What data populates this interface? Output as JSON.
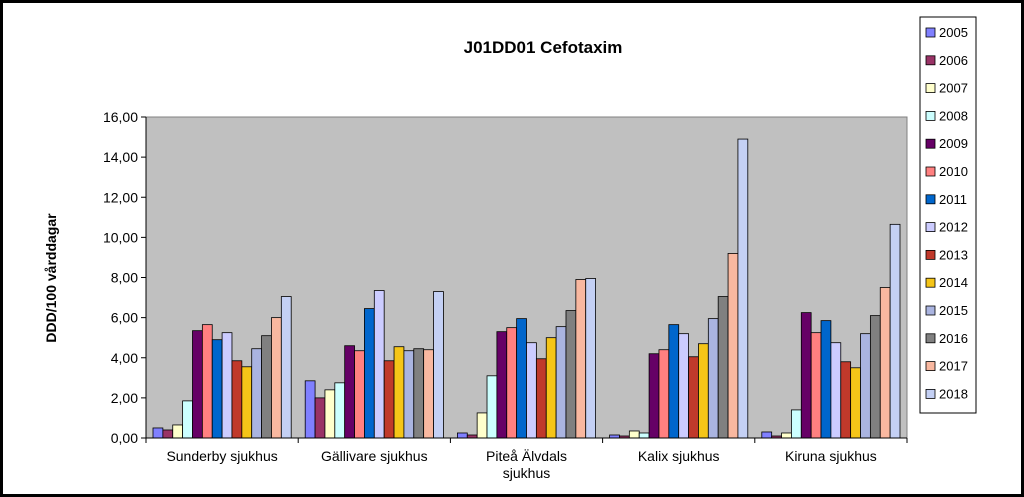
{
  "chart_data": {
    "type": "bar",
    "title": "J01DD01 Cefotaxim",
    "ylabel": "DDD/100 vårddagar",
    "xlabel": "",
    "ylim": [
      0,
      16
    ],
    "ytick_labels": [
      "0,00",
      "2,00",
      "4,00",
      "6,00",
      "8,00",
      "10,00",
      "12,00",
      "14,00",
      "16,00"
    ],
    "grid": false,
    "legend_position": "right",
    "categories": [
      [
        "Sunderby sjukhus"
      ],
      [
        "Gällivare sjukhus"
      ],
      [
        "Piteå Älvdals",
        "sjukhus"
      ],
      [
        "Kalix sjukhus"
      ],
      [
        "Kiruna sjukhus"
      ]
    ],
    "series": [
      {
        "name": "2005",
        "color": "#8080ff",
        "values": [
          0.5,
          2.85,
          0.25,
          0.15,
          0.3
        ]
      },
      {
        "name": "2006",
        "color": "#993366",
        "values": [
          0.4,
          2.0,
          0.15,
          0.1,
          0.1
        ]
      },
      {
        "name": "2007",
        "color": "#ffffcc",
        "values": [
          0.65,
          2.4,
          1.25,
          0.35,
          0.25
        ]
      },
      {
        "name": "2008",
        "color": "#ccffff",
        "values": [
          1.85,
          2.75,
          3.1,
          0.25,
          1.4
        ]
      },
      {
        "name": "2009",
        "color": "#660066",
        "values": [
          5.35,
          4.6,
          5.3,
          4.2,
          6.25
        ]
      },
      {
        "name": "2010",
        "color": "#ff8080",
        "values": [
          5.65,
          4.35,
          5.5,
          4.4,
          5.25
        ]
      },
      {
        "name": "2011",
        "color": "#0066cc",
        "values": [
          4.9,
          6.45,
          5.95,
          5.65,
          5.85
        ]
      },
      {
        "name": "2012",
        "color": "#ccccff",
        "values": [
          5.25,
          7.35,
          4.75,
          5.2,
          4.75
        ]
      },
      {
        "name": "2013",
        "color": "#c0392b",
        "values": [
          3.85,
          3.85,
          3.95,
          4.05,
          3.8
        ]
      },
      {
        "name": "2014",
        "color": "#f5c518",
        "values": [
          3.55,
          4.55,
          5.0,
          4.7,
          3.5
        ]
      },
      {
        "name": "2015",
        "color": "#aab4e0",
        "values": [
          4.45,
          4.35,
          5.55,
          5.95,
          5.2
        ]
      },
      {
        "name": "2016",
        "color": "#808080",
        "values": [
          5.1,
          4.45,
          6.35,
          7.05,
          6.1
        ]
      },
      {
        "name": "2017",
        "color": "#f9b8a0",
        "values": [
          6.0,
          4.4,
          7.9,
          9.2,
          7.5
        ]
      },
      {
        "name": "2018",
        "color": "#c4d0f4",
        "values": [
          7.05,
          7.3,
          7.95,
          14.9,
          10.65
        ]
      }
    ]
  }
}
